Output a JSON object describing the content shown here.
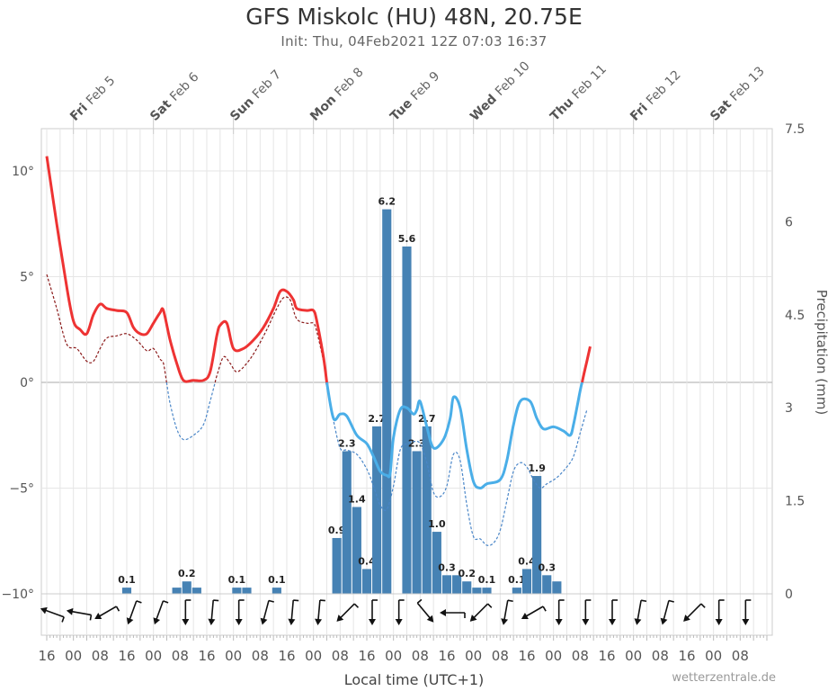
{
  "header": {
    "title": "GFS Miskolc (HU) 48N, 20.75E",
    "subtitle": "Init: Thu, 04Feb2021 12Z 07:03 16:37"
  },
  "footer": {
    "credit": "wetterzentrale.de"
  },
  "chart_data": {
    "type": "line",
    "xlabel": "Local time (UTC+1)",
    "ylabel_right": "Precipitation (mm)",
    "x_unit": "hours",
    "x_range": [
      0,
      216
    ],
    "x_ticks": [
      {
        "x": 0,
        "label": "16"
      },
      {
        "x": 8,
        "label": "00"
      },
      {
        "x": 16,
        "label": "08"
      },
      {
        "x": 24,
        "label": "16"
      },
      {
        "x": 32,
        "label": "00"
      },
      {
        "x": 40,
        "label": "08"
      },
      {
        "x": 48,
        "label": "16"
      },
      {
        "x": 56,
        "label": "00"
      },
      {
        "x": 64,
        "label": "08"
      },
      {
        "x": 72,
        "label": "16"
      },
      {
        "x": 80,
        "label": "00"
      },
      {
        "x": 88,
        "label": "08"
      },
      {
        "x": 96,
        "label": "16"
      },
      {
        "x": 104,
        "label": "00"
      },
      {
        "x": 112,
        "label": "08"
      },
      {
        "x": 120,
        "label": "16"
      },
      {
        "x": 128,
        "label": "00"
      },
      {
        "x": 136,
        "label": "08"
      },
      {
        "x": 144,
        "label": "16"
      },
      {
        "x": 152,
        "label": "00"
      },
      {
        "x": 160,
        "label": "08"
      },
      {
        "x": 168,
        "label": "16"
      },
      {
        "x": 176,
        "label": "00"
      },
      {
        "x": 184,
        "label": "08"
      },
      {
        "x": 192,
        "label": "16"
      },
      {
        "x": 200,
        "label": "00"
      },
      {
        "x": 208,
        "label": "08"
      }
    ],
    "days": [
      {
        "x": 8,
        "name": "Fri",
        "date": "Feb 5"
      },
      {
        "x": 32,
        "name": "Sat",
        "date": "Feb 6"
      },
      {
        "x": 56,
        "name": "Sun",
        "date": "Feb 7"
      },
      {
        "x": 80,
        "name": "Mon",
        "date": "Feb 8"
      },
      {
        "x": 104,
        "name": "Tue",
        "date": "Feb 9"
      },
      {
        "x": 128,
        "name": "Wed",
        "date": "Feb 10"
      },
      {
        "x": 152,
        "name": "Thu",
        "date": "Feb 11"
      },
      {
        "x": 176,
        "name": "Fri",
        "date": "Feb 12"
      },
      {
        "x": 200,
        "name": "Sat",
        "date": "Feb 13"
      }
    ],
    "y_left": {
      "range": [
        -10,
        12
      ],
      "ticks": [
        {
          "value": 10,
          "label": "10°"
        },
        {
          "value": 5,
          "label": "5°"
        },
        {
          "value": 0,
          "label": "0°"
        },
        {
          "value": -5,
          "label": "−5°"
        },
        {
          "value": -10,
          "label": "−10°"
        }
      ]
    },
    "y_right": {
      "range": [
        0,
        7.5
      ],
      "ticks": [
        {
          "value": 7.5,
          "label": "7.5"
        },
        {
          "value": 6,
          "label": "6"
        },
        {
          "value": 4.5,
          "label": "4.5"
        },
        {
          "value": 3,
          "label": "3"
        },
        {
          "value": 1.5,
          "label": "1.5"
        },
        {
          "value": 0,
          "label": "0"
        }
      ]
    },
    "colors": {
      "temp_warm": "#ee3333",
      "temp_cold": "#4aaee8",
      "dewpoint_warm": "#8b1a1a",
      "dewpoint_cold": "#4a86c8",
      "precip": "#4682b4",
      "grid": "#e6e6e6",
      "zero_line": "#bbbbbb"
    },
    "series": [
      {
        "kind": "temperature",
        "points": [
          [
            0,
            10.7
          ],
          [
            3,
            7.5
          ],
          [
            6,
            4.5
          ],
          [
            8,
            2.9
          ],
          [
            10,
            2.5
          ],
          [
            12,
            2.3
          ],
          [
            14,
            3.2
          ],
          [
            16,
            3.7
          ],
          [
            18,
            3.5
          ],
          [
            21,
            3.4
          ],
          [
            24,
            3.3
          ],
          [
            26,
            2.6
          ],
          [
            28,
            2.3
          ],
          [
            30,
            2.3
          ],
          [
            32,
            2.8
          ],
          [
            34,
            3.3
          ],
          [
            35,
            3.4
          ],
          [
            37,
            2.0
          ],
          [
            39,
            0.9
          ],
          [
            41,
            0.1
          ],
          [
            44,
            0.1
          ],
          [
            47,
            0.1
          ],
          [
            49,
            0.5
          ],
          [
            51,
            2.2
          ],
          [
            52,
            2.7
          ],
          [
            54,
            2.8
          ],
          [
            56,
            1.6
          ],
          [
            59,
            1.6
          ],
          [
            62,
            2.0
          ],
          [
            65,
            2.6
          ],
          [
            68,
            3.5
          ],
          [
            70,
            4.3
          ],
          [
            72,
            4.3
          ],
          [
            74,
            3.9
          ],
          [
            75,
            3.5
          ],
          [
            78,
            3.4
          ],
          [
            80,
            3.4
          ],
          [
            81,
            2.9
          ],
          [
            83,
            1.2
          ],
          [
            84,
            0.0
          ],
          [
            86,
            -1.7
          ],
          [
            88,
            -1.5
          ],
          [
            90,
            -1.6
          ],
          [
            93,
            -2.5
          ],
          [
            96,
            -2.9
          ],
          [
            98,
            -3.5
          ],
          [
            100,
            -4.2
          ],
          [
            102,
            -4.4
          ],
          [
            103,
            -4.3
          ],
          [
            104,
            -2.6
          ],
          [
            106,
            -1.3
          ],
          [
            108,
            -1.2
          ],
          [
            110,
            -1.5
          ],
          [
            111,
            -1.3
          ],
          [
            112,
            -0.9
          ],
          [
            114,
            -2.1
          ],
          [
            116,
            -3.1
          ],
          [
            119,
            -2.7
          ],
          [
            121,
            -1.7
          ],
          [
            122,
            -0.7
          ],
          [
            124,
            -1.2
          ],
          [
            126,
            -3.2
          ],
          [
            128,
            -4.7
          ],
          [
            130,
            -5.0
          ],
          [
            132,
            -4.8
          ],
          [
            136,
            -4.6
          ],
          [
            138,
            -3.7
          ],
          [
            140,
            -2.0
          ],
          [
            142,
            -0.9
          ],
          [
            145,
            -0.9
          ],
          [
            147,
            -1.7
          ],
          [
            149,
            -2.2
          ],
          [
            152,
            -2.1
          ],
          [
            155,
            -2.3
          ],
          [
            157,
            -2.5
          ],
          [
            158,
            -2.0
          ],
          [
            160,
            -0.4
          ],
          [
            162,
            1.0
          ],
          [
            163,
            1.7
          ]
        ]
      },
      {
        "kind": "dewpoint",
        "points": [
          [
            0,
            5.1
          ],
          [
            3,
            3.5
          ],
          [
            6,
            1.8
          ],
          [
            9,
            1.6
          ],
          [
            12,
            1.0
          ],
          [
            14,
            1.0
          ],
          [
            16,
            1.6
          ],
          [
            18,
            2.1
          ],
          [
            21,
            2.2
          ],
          [
            24,
            2.3
          ],
          [
            27,
            2.0
          ],
          [
            30,
            1.5
          ],
          [
            32,
            1.6
          ],
          [
            34,
            1.1
          ],
          [
            35,
            0.9
          ],
          [
            37,
            -1.0
          ],
          [
            39,
            -2.2
          ],
          [
            41,
            -2.7
          ],
          [
            44,
            -2.5
          ],
          [
            47,
            -2.0
          ],
          [
            49,
            -0.9
          ],
          [
            51,
            0.3
          ],
          [
            53,
            1.2
          ],
          [
            55,
            0.9
          ],
          [
            57,
            0.5
          ],
          [
            60,
            0.9
          ],
          [
            63,
            1.6
          ],
          [
            66,
            2.5
          ],
          [
            69,
            3.5
          ],
          [
            71,
            4.0
          ],
          [
            73,
            3.9
          ],
          [
            75,
            3.0
          ],
          [
            78,
            2.8
          ],
          [
            80,
            2.8
          ],
          [
            81,
            2.4
          ],
          [
            83,
            1.0
          ],
          [
            84,
            -0.2
          ],
          [
            86,
            -1.8
          ],
          [
            88,
            -3.1
          ],
          [
            90,
            -3.2
          ],
          [
            93,
            -3.4
          ],
          [
            96,
            -4.1
          ],
          [
            98,
            -4.9
          ],
          [
            100,
            -5.8
          ],
          [
            102,
            -6.0
          ],
          [
            104,
            -4.9
          ],
          [
            106,
            -3.2
          ],
          [
            108,
            -2.9
          ],
          [
            110,
            -2.8
          ],
          [
            112,
            -2.9
          ],
          [
            114,
            -3.8
          ],
          [
            116,
            -5.2
          ],
          [
            118,
            -5.4
          ],
          [
            120,
            -4.9
          ],
          [
            122,
            -3.4
          ],
          [
            124,
            -3.7
          ],
          [
            126,
            -5.8
          ],
          [
            128,
            -7.3
          ],
          [
            130,
            -7.4
          ],
          [
            132,
            -7.7
          ],
          [
            134,
            -7.6
          ],
          [
            136,
            -7.0
          ],
          [
            138,
            -5.6
          ],
          [
            140,
            -4.2
          ],
          [
            142,
            -3.8
          ],
          [
            144,
            -4.0
          ],
          [
            146,
            -4.6
          ],
          [
            148,
            -5.0
          ],
          [
            150,
            -4.8
          ],
          [
            153,
            -4.5
          ],
          [
            156,
            -4.0
          ],
          [
            158,
            -3.5
          ],
          [
            160,
            -2.4
          ],
          [
            162,
            -1.3
          ]
        ]
      },
      {
        "kind": "precipitation",
        "unit": "mm",
        "bars": [
          {
            "x": 24.0,
            "value": 0.1,
            "label": "0.1"
          },
          {
            "x": 39.0,
            "value": 0.1,
            "label": ""
          },
          {
            "x": 42.0,
            "value": 0.2,
            "label": "0.2"
          },
          {
            "x": 45.0,
            "value": 0.1,
            "label": ""
          },
          {
            "x": 57.0,
            "value": 0.1,
            "label": "0.1"
          },
          {
            "x": 60.0,
            "value": 0.1,
            "label": ""
          },
          {
            "x": 69.0,
            "value": 0.1,
            "label": "0.1"
          },
          {
            "x": 87.0,
            "value": 0.9,
            "label": "0.9"
          },
          {
            "x": 90.0,
            "value": 2.3,
            "label": "2.3"
          },
          {
            "x": 93.0,
            "value": 1.4,
            "label": "1.4"
          },
          {
            "x": 96.0,
            "value": 0.4,
            "label": "0.4"
          },
          {
            "x": 99.0,
            "value": 2.7,
            "label": "2.7"
          },
          {
            "x": 102.0,
            "value": 6.2,
            "label": "6.2"
          },
          {
            "x": 108.0,
            "value": 5.6,
            "label": "5.6"
          },
          {
            "x": 111.0,
            "value": 2.3,
            "label": "2.3"
          },
          {
            "x": 114.0,
            "value": 2.7,
            "label": "2.7"
          },
          {
            "x": 117.0,
            "value": 1.0,
            "label": "1.0"
          },
          {
            "x": 120.0,
            "value": 0.3,
            "label": "0.3"
          },
          {
            "x": 123.0,
            "value": 0.3,
            "label": ""
          },
          {
            "x": 126.0,
            "value": 0.2,
            "label": "0.2"
          },
          {
            "x": 129.0,
            "value": 0.1,
            "label": ""
          },
          {
            "x": 132.0,
            "value": 0.1,
            "label": "0.1"
          },
          {
            "x": 141.0,
            "value": 0.1,
            "label": "0.1"
          },
          {
            "x": 144.0,
            "value": 0.4,
            "label": "0.4"
          },
          {
            "x": 147.0,
            "value": 1.9,
            "label": "1.9"
          },
          {
            "x": 150.0,
            "value": 0.3,
            "label": "0.3"
          },
          {
            "x": 153.0,
            "value": 0.2,
            "label": ""
          }
        ]
      }
    ],
    "wind_arrows": [
      {
        "x": 0,
        "dir": 110
      },
      {
        "x": 8,
        "dir": 100
      },
      {
        "x": 16,
        "dir": 60
      },
      {
        "x": 24,
        "dir": 20
      },
      {
        "x": 32,
        "dir": 20
      },
      {
        "x": 40,
        "dir": 0
      },
      {
        "x": 48,
        "dir": 5
      },
      {
        "x": 56,
        "dir": 0
      },
      {
        "x": 64,
        "dir": 15
      },
      {
        "x": 72,
        "dir": 5
      },
      {
        "x": 80,
        "dir": 5
      },
      {
        "x": 88,
        "dir": 45
      },
      {
        "x": 96,
        "dir": 0
      },
      {
        "x": 104,
        "dir": 0
      },
      {
        "x": 112,
        "dir": 320
      },
      {
        "x": 120,
        "dir": 90
      },
      {
        "x": 128,
        "dir": 45
      },
      {
        "x": 136,
        "dir": 10
      },
      {
        "x": 144,
        "dir": 60
      },
      {
        "x": 152,
        "dir": 0
      },
      {
        "x": 160,
        "dir": 0
      },
      {
        "x": 168,
        "dir": 0
      },
      {
        "x": 176,
        "dir": 10
      },
      {
        "x": 184,
        "dir": 15
      },
      {
        "x": 192,
        "dir": 45
      },
      {
        "x": 200,
        "dir": 0
      },
      {
        "x": 208,
        "dir": 0
      }
    ]
  }
}
